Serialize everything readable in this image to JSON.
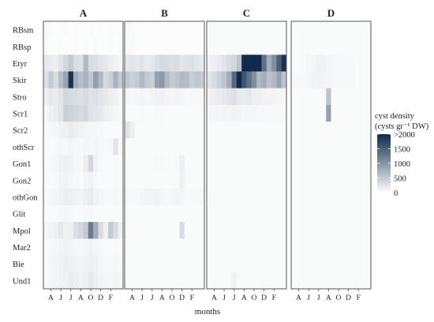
{
  "chart_data": {
    "type": "heatmap",
    "xlabel": "months",
    "month_ticks": [
      "A",
      "J",
      "J",
      "A",
      "O",
      "D",
      "F"
    ],
    "rows": [
      "RBsm",
      "RBsp",
      "Etyr",
      "Skir",
      "Stro",
      "Scr1",
      "Scr2",
      "othScr",
      "Gon1",
      "Gon2",
      "othGon",
      "Glit",
      "Mpol",
      "Mar2",
      "Bie",
      "Und1"
    ],
    "columns_per_panel": 16,
    "legend": {
      "title_line1": "cyst density",
      "title_line2": "(cysts gr⁻¹ DW)",
      "ticks": [
        ">2000",
        "1500",
        "1000",
        "500",
        "0"
      ],
      "tick_values": [
        2000,
        1500,
        1000,
        500,
        0
      ],
      "max": 2000
    },
    "colors": {
      "low": "#ffffff",
      "high": "#0f2a4a",
      "panel_border": "#555555"
    },
    "panels": [
      {
        "title": "A",
        "cells": [
          [
            30,
            20,
            10,
            15,
            25,
            10,
            20,
            15,
            10,
            20,
            10,
            15,
            10,
            20,
            15,
            10
          ],
          [
            20,
            10,
            10,
            15,
            10,
            10,
            20,
            10,
            15,
            10,
            20,
            10,
            10,
            15,
            10,
            20
          ],
          [
            120,
            100,
            80,
            150,
            250,
            350,
            200,
            180,
            480,
            200,
            180,
            150,
            120,
            80,
            60,
            40
          ],
          [
            180,
            350,
            200,
            450,
            700,
            1900,
            600,
            450,
            550,
            380,
            750,
            500,
            220,
            300,
            550,
            350
          ],
          [
            80,
            120,
            100,
            150,
            250,
            220,
            200,
            180,
            220,
            160,
            180,
            150,
            120,
            80,
            60,
            40
          ],
          [
            40,
            80,
            100,
            150,
            300,
            280,
            250,
            220,
            250,
            160,
            150,
            120,
            80,
            60,
            40,
            30
          ],
          [
            20,
            30,
            40,
            60,
            80,
            100,
            80,
            60,
            50,
            40,
            40,
            30,
            20,
            20,
            20,
            20
          ],
          [
            20,
            20,
            30,
            40,
            30,
            50,
            40,
            30,
            40,
            40,
            50,
            30,
            30,
            40,
            150,
            30
          ],
          [
            20,
            30,
            40,
            60,
            80,
            60,
            40,
            30,
            80,
            250,
            60,
            30,
            20,
            20,
            30,
            20
          ],
          [
            20,
            20,
            30,
            50,
            60,
            40,
            30,
            20,
            40,
            60,
            30,
            20,
            20,
            20,
            30,
            20
          ],
          [
            30,
            40,
            50,
            60,
            90,
            80,
            60,
            50,
            80,
            100,
            60,
            40,
            30,
            30,
            40,
            30
          ],
          [
            20,
            20,
            20,
            30,
            40,
            30,
            20,
            20,
            30,
            30,
            20,
            20,
            20,
            20,
            20,
            20
          ],
          [
            40,
            50,
            80,
            120,
            60,
            80,
            180,
            250,
            350,
            1100,
            600,
            200,
            80,
            350,
            200,
            60
          ],
          [
            20,
            30,
            40,
            50,
            60,
            50,
            40,
            30,
            40,
            60,
            40,
            30,
            20,
            20,
            30,
            20
          ],
          [
            30,
            40,
            50,
            60,
            80,
            70,
            60,
            50,
            60,
            80,
            60,
            40,
            30,
            30,
            40,
            30
          ],
          [
            30,
            40,
            50,
            60,
            80,
            100,
            80,
            60,
            80,
            120,
            80,
            50,
            40,
            40,
            50,
            40
          ]
        ]
      },
      {
        "title": "B",
        "cells": [
          [
            30,
            20,
            10,
            10,
            10,
            10,
            10,
            10,
            10,
            10,
            10,
            10,
            10,
            10,
            10,
            10
          ],
          [
            20,
            20,
            10,
            10,
            10,
            10,
            10,
            10,
            10,
            10,
            10,
            10,
            10,
            10,
            10,
            10
          ],
          [
            120,
            150,
            120,
            150,
            100,
            120,
            180,
            220,
            200,
            180,
            200,
            150,
            160,
            180,
            150,
            120
          ],
          [
            380,
            300,
            350,
            500,
            350,
            300,
            700,
            800,
            500,
            350,
            400,
            480,
            450,
            320,
            380,
            350
          ],
          [
            40,
            30,
            40,
            50,
            40,
            50,
            60,
            70,
            50,
            40,
            50,
            40,
            30,
            30,
            30,
            30
          ],
          [
            20,
            20,
            20,
            30,
            20,
            20,
            30,
            30,
            20,
            20,
            20,
            20,
            20,
            20,
            20,
            20
          ],
          [
            150,
            80,
            20,
            20,
            20,
            20,
            20,
            20,
            20,
            20,
            20,
            20,
            20,
            20,
            20,
            20
          ],
          [
            20,
            20,
            20,
            20,
            20,
            20,
            20,
            20,
            20,
            20,
            20,
            20,
            20,
            20,
            20,
            20
          ],
          [
            20,
            20,
            20,
            20,
            20,
            20,
            30,
            30,
            20,
            20,
            30,
            80,
            20,
            20,
            20,
            20
          ],
          [
            20,
            20,
            20,
            20,
            20,
            20,
            20,
            20,
            20,
            20,
            20,
            60,
            20,
            20,
            20,
            20
          ],
          [
            30,
            30,
            30,
            40,
            50,
            50,
            60,
            40,
            30,
            40,
            50,
            40,
            30,
            30,
            30,
            30
          ],
          [
            20,
            20,
            20,
            20,
            20,
            20,
            20,
            20,
            20,
            20,
            20,
            20,
            20,
            20,
            20,
            20
          ],
          [
            20,
            20,
            20,
            20,
            20,
            20,
            20,
            20,
            20,
            20,
            20,
            200,
            20,
            20,
            20,
            20
          ],
          [
            20,
            20,
            20,
            20,
            20,
            20,
            20,
            20,
            20,
            20,
            20,
            20,
            20,
            20,
            20,
            20
          ],
          [
            20,
            20,
            20,
            20,
            20,
            20,
            20,
            20,
            20,
            20,
            20,
            20,
            20,
            20,
            20,
            20
          ],
          [
            20,
            20,
            20,
            20,
            20,
            20,
            20,
            20,
            20,
            20,
            20,
            20,
            20,
            20,
            20,
            20
          ]
        ]
      },
      {
        "title": "C",
        "cells": [
          [
            20,
            20,
            20,
            20,
            20,
            20,
            20,
            20,
            20,
            20,
            20,
            20,
            20,
            20,
            20,
            20
          ],
          [
            20,
            20,
            20,
            20,
            20,
            20,
            20,
            20,
            20,
            20,
            20,
            20,
            20,
            20,
            20,
            20
          ],
          [
            60,
            80,
            100,
            150,
            200,
            250,
            400,
            2200,
            2200,
            2200,
            2200,
            1200,
            600,
            900,
            1400,
            1900
          ],
          [
            150,
            200,
            300,
            400,
            600,
            1300,
            2100,
            1500,
            1200,
            900,
            500,
            600,
            400,
            500,
            700,
            400
          ],
          [
            60,
            80,
            100,
            120,
            150,
            180,
            120,
            100,
            120,
            80,
            80,
            60,
            50,
            50,
            40,
            40
          ],
          [
            40,
            40,
            40,
            50,
            50,
            60,
            50,
            40,
            40,
            40,
            30,
            30,
            30,
            30,
            30,
            30
          ],
          [
            20,
            20,
            20,
            20,
            20,
            20,
            20,
            20,
            20,
            20,
            20,
            20,
            20,
            20,
            20,
            20
          ],
          [
            20,
            20,
            20,
            20,
            20,
            20,
            20,
            20,
            20,
            20,
            20,
            20,
            20,
            20,
            20,
            20
          ],
          [
            20,
            20,
            20,
            20,
            20,
            20,
            20,
            20,
            20,
            20,
            20,
            20,
            20,
            20,
            20,
            20
          ],
          [
            20,
            20,
            20,
            20,
            20,
            20,
            20,
            20,
            20,
            20,
            20,
            20,
            20,
            20,
            20,
            20
          ],
          [
            20,
            20,
            20,
            20,
            20,
            20,
            20,
            20,
            20,
            20,
            20,
            20,
            20,
            20,
            20,
            20
          ],
          [
            20,
            20,
            20,
            20,
            20,
            20,
            20,
            20,
            20,
            20,
            20,
            20,
            20,
            20,
            20,
            20
          ],
          [
            20,
            20,
            20,
            20,
            20,
            20,
            20,
            20,
            20,
            20,
            20,
            20,
            20,
            20,
            20,
            20
          ],
          [
            20,
            20,
            20,
            20,
            20,
            20,
            20,
            20,
            20,
            20,
            20,
            20,
            20,
            20,
            20,
            20
          ],
          [
            20,
            20,
            20,
            20,
            20,
            20,
            20,
            20,
            20,
            20,
            20,
            20,
            20,
            20,
            20,
            20
          ],
          [
            20,
            20,
            20,
            20,
            20,
            60,
            20,
            20,
            20,
            20,
            20,
            20,
            20,
            20,
            20,
            20
          ]
        ]
      },
      {
        "title": "D",
        "cells": [
          [
            20,
            20,
            20,
            20,
            20,
            20,
            20,
            20,
            20,
            20,
            20,
            20,
            20,
            20,
            20,
            20
          ],
          [
            20,
            20,
            20,
            20,
            20,
            20,
            20,
            20,
            20,
            20,
            20,
            20,
            20,
            20,
            20,
            20
          ],
          [
            20,
            20,
            20,
            40,
            40,
            60,
            60,
            40,
            40,
            30,
            30,
            30,
            30,
            20,
            20,
            20
          ],
          [
            30,
            30,
            30,
            40,
            60,
            60,
            50,
            40,
            40,
            30,
            30,
            30,
            30,
            20,
            20,
            20
          ],
          [
            20,
            20,
            20,
            20,
            20,
            20,
            20,
            400,
            20,
            20,
            20,
            20,
            20,
            20,
            20,
            20
          ],
          [
            20,
            20,
            20,
            20,
            20,
            20,
            20,
            700,
            20,
            20,
            20,
            20,
            20,
            20,
            20,
            20
          ],
          [
            20,
            20,
            20,
            20,
            20,
            20,
            20,
            20,
            20,
            20,
            20,
            20,
            20,
            20,
            20,
            20
          ],
          [
            20,
            20,
            20,
            20,
            20,
            20,
            20,
            20,
            20,
            20,
            20,
            20,
            20,
            20,
            20,
            20
          ],
          [
            20,
            20,
            20,
            20,
            20,
            20,
            20,
            20,
            20,
            20,
            20,
            20,
            20,
            20,
            20,
            20
          ],
          [
            20,
            20,
            20,
            20,
            20,
            20,
            20,
            20,
            20,
            20,
            20,
            20,
            20,
            20,
            20,
            20
          ],
          [
            20,
            20,
            20,
            20,
            20,
            20,
            20,
            20,
            20,
            20,
            20,
            20,
            20,
            20,
            20,
            20
          ],
          [
            20,
            20,
            20,
            20,
            20,
            20,
            20,
            20,
            20,
            20,
            20,
            20,
            20,
            20,
            20,
            20
          ],
          [
            20,
            20,
            20,
            20,
            20,
            20,
            20,
            20,
            20,
            20,
            20,
            20,
            20,
            20,
            20,
            20
          ],
          [
            20,
            20,
            20,
            20,
            20,
            20,
            20,
            20,
            20,
            20,
            20,
            20,
            20,
            20,
            20,
            20
          ],
          [
            20,
            20,
            20,
            20,
            20,
            20,
            20,
            20,
            20,
            20,
            20,
            20,
            20,
            20,
            20,
            20
          ],
          [
            20,
            20,
            20,
            20,
            20,
            20,
            20,
            20,
            20,
            20,
            20,
            20,
            20,
            20,
            20,
            20
          ]
        ]
      }
    ]
  }
}
